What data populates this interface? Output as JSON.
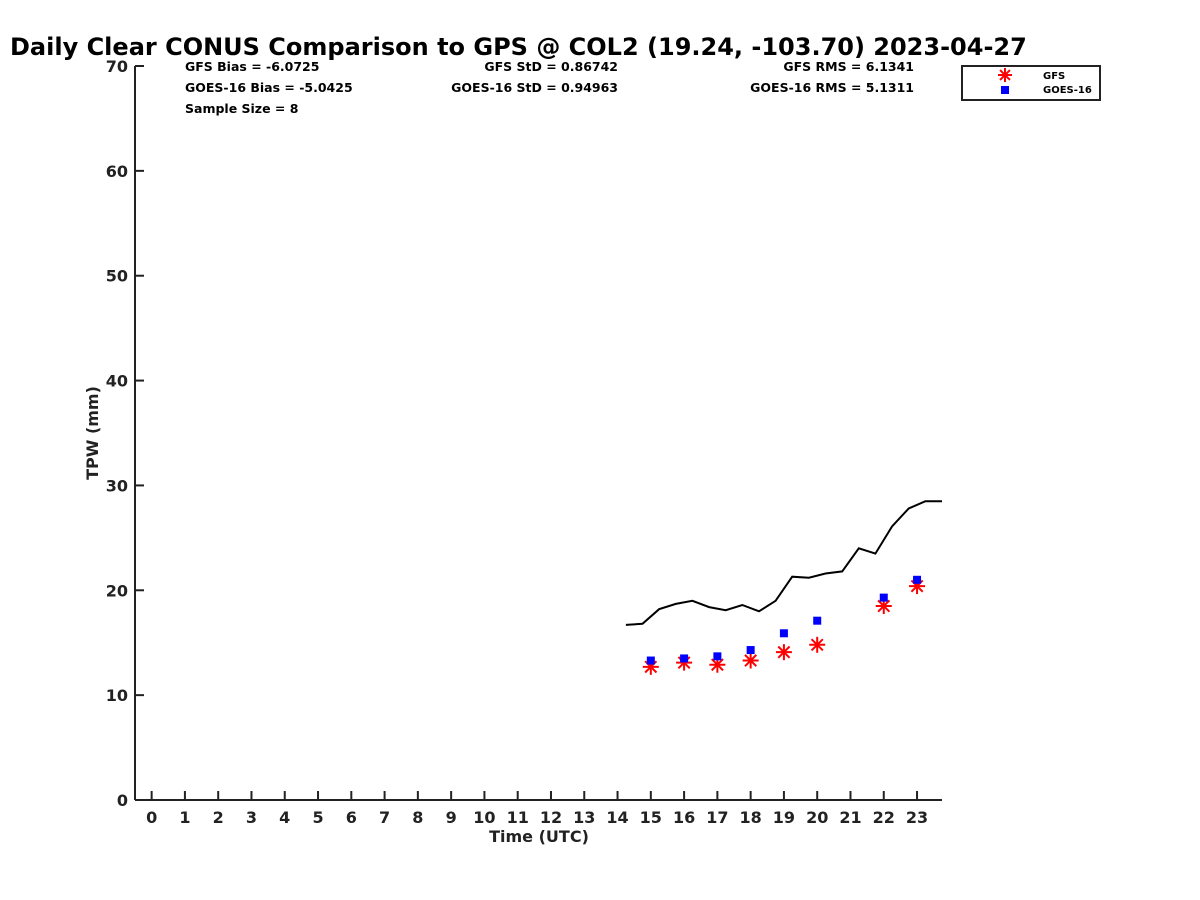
{
  "chart_data": {
    "type": "scatter",
    "title": "Daily Clear CONUS Comparison to GPS @ COL2 (19.24, -103.70) 2023-04-27",
    "xlabel": "Time (UTC)",
    "ylabel": "TPW (mm)",
    "xlim": [
      -0.5,
      23.75
    ],
    "ylim": [
      0,
      70
    ],
    "xticks": [
      0,
      1,
      2,
      3,
      4,
      5,
      6,
      7,
      8,
      9,
      10,
      11,
      12,
      13,
      14,
      15,
      16,
      17,
      18,
      19,
      20,
      21,
      22,
      23
    ],
    "yticks": [
      0,
      10,
      20,
      30,
      40,
      50,
      60,
      70
    ],
    "stats": {
      "gfs_bias": "GFS Bias = -6.0725",
      "goes_bias": "GOES-16 Bias = -5.0425",
      "sample_size": "Sample Size = 8",
      "gfs_std": "GFS StD = 0.86742",
      "goes_std": "GOES-16 StD = 0.94963",
      "gfs_rms": "GFS RMS = 6.1341",
      "goes_rms": "GOES-16 RMS = 5.1311"
    },
    "legend": {
      "position": "top-right",
      "entries": [
        "GFS",
        "GOES-16"
      ]
    },
    "series": [
      {
        "name": "GPS",
        "kind": "line",
        "color": "#000000",
        "x": [
          14.25,
          14.75,
          15.25,
          15.75,
          16.25,
          16.75,
          17.25,
          17.75,
          18.25,
          18.75,
          19.25,
          19.75,
          20.25,
          20.75,
          21.25,
          21.75,
          22.25,
          22.75,
          23.25,
          23.75
        ],
        "y": [
          16.7,
          16.8,
          18.2,
          18.7,
          19.0,
          18.4,
          18.1,
          18.6,
          18.0,
          19.0,
          21.3,
          21.2,
          21.6,
          21.8,
          24.0,
          23.5,
          26.1,
          27.8,
          28.5,
          28.5
        ]
      },
      {
        "name": "GFS",
        "kind": "marker",
        "marker": "asterisk",
        "color": "#ff0000",
        "x": [
          15,
          16,
          17,
          18,
          19,
          20,
          22,
          23
        ],
        "y": [
          12.7,
          13.1,
          12.9,
          13.3,
          14.1,
          14.8,
          18.5,
          20.4
        ]
      },
      {
        "name": "GOES-16",
        "kind": "marker",
        "marker": "square",
        "color": "#0000ff",
        "x": [
          15,
          16,
          17,
          18,
          19,
          20,
          22,
          23
        ],
        "y": [
          13.3,
          13.5,
          13.7,
          14.3,
          15.9,
          17.1,
          19.3,
          21.0
        ]
      }
    ]
  }
}
